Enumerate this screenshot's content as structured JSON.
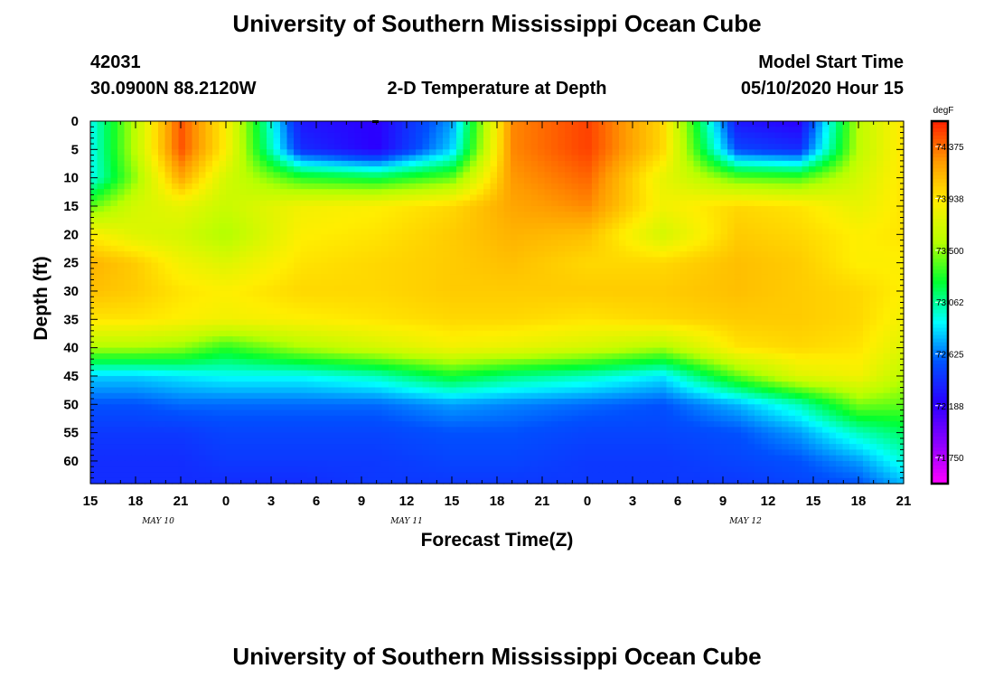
{
  "page": {
    "title_top": "University of Southern Mississippi Ocean Cube",
    "title_bottom": "University of Southern Mississippi Ocean Cube",
    "station_id": "42031",
    "station_coords": "30.0900N 88.2120W",
    "model_start_label": "Model Start Time",
    "model_start_value": "05/10/2020 Hour 15"
  },
  "colors": {
    "stops": [
      "#ff00ff",
      "#8b00ff",
      "#2a00ff",
      "#0050ff",
      "#00ffff",
      "#00ff30",
      "#b8ff00",
      "#ffee00",
      "#ff9a00",
      "#ff2000"
    ]
  },
  "chart_data": {
    "type": "heatmap",
    "title": "2-D Temperature at Depth",
    "xlabel": "Forecast Time(Z)",
    "ylabel": "Depth (ft)",
    "xlim": [
      0,
      54
    ],
    "ylim": [
      64,
      0
    ],
    "x_ticks": [
      "15",
      "18",
      "21",
      "0",
      "3",
      "6",
      "9",
      "12",
      "15",
      "18",
      "21",
      "0",
      "3",
      "6",
      "9",
      "12",
      "15",
      "18",
      "21"
    ],
    "y_ticks": [
      0,
      5,
      10,
      15,
      20,
      25,
      30,
      35,
      40,
      45,
      50,
      55,
      60
    ],
    "date_labels": [
      {
        "text": "MAY 10",
        "x": 4.5
      },
      {
        "text": "MAY 11",
        "x": 21
      },
      {
        "text": "MAY 12",
        "x": 43.5
      }
    ],
    "colorbar": {
      "unit": "degF",
      "min": 71.53,
      "max": 74.59,
      "ticks": [
        "71.750",
        "72.188",
        "72.625",
        "73.062",
        "73.500",
        "73.938",
        "74.375"
      ]
    },
    "x_hours": [
      0,
      3,
      6,
      9,
      14,
      19,
      24,
      28,
      33,
      38,
      43,
      47,
      51,
      54
    ],
    "depths": [
      0,
      5,
      10,
      15,
      20,
      25,
      30,
      35,
      40,
      45,
      50,
      55,
      60,
      64
    ],
    "values": [
      [
        72.9,
        73.6,
        74.45,
        73.9,
        72.3,
        72.2,
        72.7,
        74.3,
        74.5,
        74.0,
        72.3,
        72.2,
        73.6,
        73.95
      ],
      [
        72.9,
        73.6,
        74.45,
        73.9,
        72.4,
        72.2,
        72.8,
        74.3,
        74.5,
        74.0,
        72.5,
        72.4,
        73.6,
        73.95
      ],
      [
        72.9,
        73.5,
        74.2,
        73.7,
        73.3,
        73.2,
        73.4,
        74.25,
        74.4,
        73.8,
        73.4,
        73.35,
        73.7,
        73.95
      ],
      [
        73.4,
        73.7,
        73.8,
        73.65,
        73.85,
        73.9,
        74.0,
        74.2,
        74.3,
        73.85,
        74.0,
        73.95,
        73.8,
        73.95
      ],
      [
        73.9,
        73.75,
        73.7,
        73.55,
        73.9,
        73.95,
        74.05,
        74.15,
        74.1,
        73.7,
        74.05,
        74.0,
        73.9,
        73.95
      ],
      [
        74.15,
        74.05,
        73.85,
        73.75,
        73.95,
        74.0,
        74.05,
        74.1,
        74.0,
        74.0,
        74.1,
        74.05,
        73.9,
        73.9
      ],
      [
        74.1,
        74.05,
        73.95,
        73.9,
        74.0,
        74.0,
        74.05,
        74.05,
        74.05,
        74.05,
        74.1,
        74.05,
        74.0,
        73.9
      ],
      [
        73.95,
        73.95,
        73.9,
        73.85,
        73.9,
        73.95,
        74.0,
        74.0,
        73.95,
        74.0,
        74.05,
        74.05,
        74.0,
        73.85
      ],
      [
        73.55,
        73.55,
        73.5,
        73.3,
        73.55,
        73.7,
        73.85,
        73.8,
        73.7,
        73.55,
        73.95,
        74.0,
        73.95,
        73.75
      ],
      [
        72.8,
        72.8,
        72.85,
        72.9,
        72.9,
        73.0,
        73.25,
        73.1,
        73.0,
        72.85,
        73.4,
        73.75,
        73.85,
        73.6
      ],
      [
        72.55,
        72.55,
        72.6,
        72.6,
        72.6,
        72.6,
        72.7,
        72.65,
        72.6,
        72.55,
        72.75,
        73.0,
        73.45,
        73.4
      ],
      [
        72.45,
        72.45,
        72.45,
        72.5,
        72.5,
        72.5,
        72.55,
        72.55,
        72.5,
        72.5,
        72.55,
        72.7,
        73.0,
        73.15
      ],
      [
        72.4,
        72.4,
        72.4,
        72.45,
        72.45,
        72.45,
        72.5,
        72.5,
        72.45,
        72.45,
        72.5,
        72.55,
        72.7,
        72.95
      ],
      [
        72.4,
        72.4,
        72.4,
        72.4,
        72.4,
        72.45,
        72.45,
        72.45,
        72.45,
        72.45,
        72.45,
        72.5,
        72.55,
        72.75
      ]
    ]
  }
}
